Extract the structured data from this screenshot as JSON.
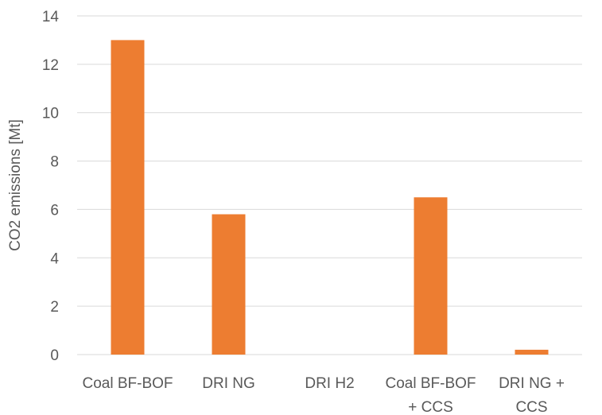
{
  "chart_data": {
    "type": "bar",
    "title": "",
    "xlabel": "",
    "ylabel": "CO2 emissions [Mt]",
    "categories": [
      [
        "Coal BF-BOF"
      ],
      [
        "DRI NG"
      ],
      [
        "DRI H2"
      ],
      [
        "Coal BF-BOF",
        "+ CCS"
      ],
      [
        "DRI NG +",
        "CCS"
      ]
    ],
    "values": [
      13.0,
      5.8,
      0.0,
      6.5,
      0.2
    ],
    "ylim": [
      0,
      14
    ],
    "yticks": [
      0,
      2,
      4,
      6,
      8,
      10,
      12,
      14
    ],
    "grid": true,
    "legend": "none",
    "colors": {
      "bar": "#ED7D31",
      "grid": "#D9D9D9",
      "text": "#595959"
    }
  }
}
